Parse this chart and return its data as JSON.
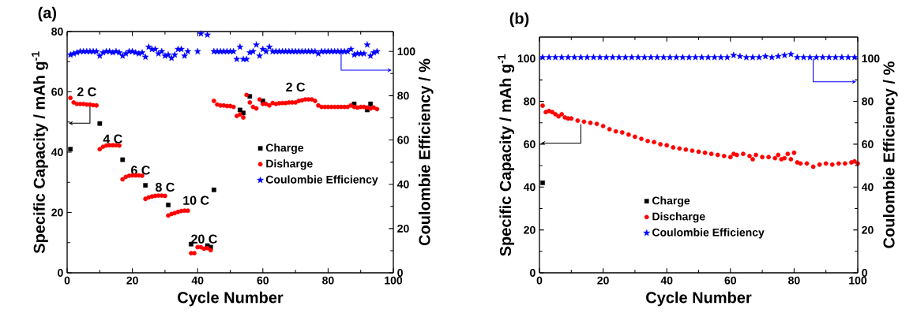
{
  "chart_data": [
    {
      "type": "scatter",
      "title": "(a)",
      "xlabel": "Cycle Number",
      "ylabel": "Specific Capacity / mAh g$^{-1}$",
      "y2label": "Coulombie Efficiency / %",
      "xlim": [
        0,
        100
      ],
      "xticks": [
        0,
        20,
        40,
        60,
        80,
        100
      ],
      "ylim": [
        0,
        80
      ],
      "yticks": [
        0,
        20,
        40,
        60,
        80
      ],
      "y2lim": [
        0,
        109
      ],
      "y2ticks": [
        0,
        20,
        40,
        60,
        80,
        100
      ],
      "grid": false,
      "legend": "right",
      "series": [
        {
          "name": "Charge",
          "color": "#000000",
          "marker": "square",
          "x": [
            1,
            10,
            17,
            24,
            31,
            38,
            43,
            44,
            45,
            53,
            54,
            56,
            60,
            88,
            92,
            93
          ],
          "values": [
            41,
            49.5,
            37.5,
            29,
            22.5,
            9.5,
            9,
            8.5,
            27.5,
            54,
            53,
            58.5,
            57,
            56,
            54,
            56
          ]
        },
        {
          "name": "Disharge",
          "color": "#ff0000",
          "marker": "circle",
          "x": [
            1,
            2,
            3,
            4,
            5,
            6,
            7,
            8,
            9,
            10,
            11,
            12,
            13,
            14,
            15,
            16,
            17,
            18,
            19,
            20,
            21,
            22,
            23,
            24,
            25,
            26,
            27,
            28,
            29,
            30,
            31,
            32,
            33,
            34,
            35,
            36,
            37,
            38,
            39,
            40,
            41,
            42,
            43,
            44,
            45,
            46,
            47,
            48,
            49,
            50,
            51,
            52,
            53,
            54,
            55,
            56,
            57,
            58,
            59,
            60,
            61,
            62,
            63,
            64,
            65,
            66,
            67,
            68,
            69,
            70,
            71,
            72,
            73,
            74,
            75,
            76,
            77,
            78,
            79,
            80,
            81,
            82,
            83,
            84,
            85,
            86,
            87,
            88,
            89,
            90,
            91,
            92,
            93,
            94,
            95
          ],
          "values": [
            58,
            56.5,
            56,
            56,
            56,
            55.8,
            55.8,
            55.6,
            55.5,
            41,
            41.8,
            42.2,
            42.3,
            42.3,
            42.3,
            42.2,
            31,
            31.8,
            32.2,
            32.3,
            32.3,
            32.3,
            32.2,
            24.5,
            25,
            25.3,
            25.5,
            25.6,
            25.6,
            25.5,
            19,
            19.5,
            19.8,
            20.2,
            20.5,
            20.6,
            20.6,
            6.5,
            6.5,
            8.5,
            8.5,
            8,
            8.2,
            7.5,
            57,
            55.8,
            55.5,
            55.5,
            55.3,
            55.3,
            55,
            52,
            52.5,
            51.5,
            59,
            56.5,
            55,
            54.5,
            57.5,
            56,
            56,
            55.5,
            56.3,
            56,
            56.2,
            56.3,
            56.3,
            56.5,
            56.5,
            56.5,
            57,
            57.2,
            57.5,
            57.5,
            57.5,
            57,
            55.5,
            55,
            55,
            55,
            55,
            55,
            55,
            55,
            55,
            55,
            55.5,
            55,
            54.8,
            55,
            55,
            54.8,
            54.5,
            54.8,
            54.3
          ]
        },
        {
          "name": "Coulombie Efficiency",
          "color": "#0000ff",
          "marker": "star",
          "axis": "y2",
          "x": [
            1,
            2,
            3,
            4,
            5,
            6,
            7,
            8,
            9,
            10,
            11,
            12,
            13,
            14,
            15,
            16,
            17,
            18,
            19,
            20,
            21,
            22,
            23,
            24,
            25,
            26,
            27,
            28,
            29,
            30,
            31,
            32,
            33,
            34,
            35,
            36,
            37,
            40,
            41,
            43,
            45,
            46,
            47,
            48,
            49,
            50,
            51,
            52,
            53,
            54,
            55,
            56,
            57,
            58,
            59,
            60,
            61,
            62,
            63,
            64,
            65,
            66,
            67,
            68,
            69,
            70,
            71,
            72,
            73,
            74,
            75,
            76,
            77,
            78,
            79,
            80,
            81,
            82,
            83,
            84,
            85,
            86,
            87,
            88,
            89,
            90,
            91,
            92,
            93,
            94,
            95
          ],
          "values": [
            98.5,
            99,
            99.5,
            100,
            100,
            100,
            100,
            100,
            100,
            98,
            99.5,
            100,
            100,
            99.5,
            100,
            99.5,
            98,
            99,
            100,
            100,
            99.5,
            99,
            99.5,
            97.5,
            102,
            101,
            101,
            99,
            100,
            98,
            98.5,
            97,
            98.5,
            101,
            101,
            98,
            100,
            100,
            108,
            107.5,
            100,
            100,
            100,
            100,
            100,
            100,
            100,
            96.5,
            102,
            96.5,
            96.5,
            99.5,
            100,
            103,
            98,
            101,
            100,
            102,
            100,
            100,
            100,
            100,
            100,
            100,
            100,
            100,
            100,
            100,
            100,
            100,
            100,
            100,
            99,
            100,
            100,
            100,
            100,
            100,
            100,
            100,
            100,
            100,
            101,
            98.5,
            99,
            99,
            99,
            103,
            98,
            99.5,
            100
          ]
        }
      ],
      "annotations": [
        "2 C",
        "4 C",
        "6 C",
        "8 C",
        "10 C",
        "20 C",
        "2 C"
      ]
    },
    {
      "type": "scatter",
      "title": "(b)",
      "xlabel": "Cycle Number",
      "ylabel": "Specific Capacity / mAh g$^{-1}$",
      "y2label": "Coulombie Efficiency / %",
      "xlim": [
        0,
        100
      ],
      "xticks": [
        0,
        20,
        40,
        60,
        80,
        100
      ],
      "ylim": [
        0,
        110
      ],
      "yticks": [
        0,
        20,
        40,
        60,
        80,
        100
      ],
      "y2lim": [
        0,
        110
      ],
      "y2ticks": [
        0,
        20,
        40,
        60,
        80,
        100
      ],
      "grid": false,
      "legend": "bottom",
      "series": [
        {
          "name": "Charge",
          "color": "#000000",
          "marker": "square",
          "x": [
            1
          ],
          "values": [
            42
          ]
        },
        {
          "name": "Discharge",
          "color": "#ff0000",
          "marker": "circle",
          "x": [
            1,
            2,
            3,
            4,
            5,
            6,
            7,
            8,
            9,
            10,
            12,
            14,
            16,
            18,
            20,
            22,
            24,
            26,
            28,
            30,
            32,
            34,
            36,
            38,
            40,
            42,
            44,
            46,
            48,
            50,
            52,
            54,
            56,
            58,
            60,
            61,
            62,
            64,
            66,
            67,
            68,
            70,
            72,
            74,
            75,
            76,
            77,
            78,
            79,
            80,
            81,
            82,
            84,
            86,
            88,
            90,
            92,
            94,
            96,
            98,
            99,
            100
          ],
          "values": [
            78,
            75,
            75.5,
            75,
            74,
            73,
            74,
            72.5,
            72,
            72,
            71,
            70.5,
            70,
            69.5,
            68.5,
            67,
            66,
            65.5,
            64.5,
            63.5,
            62.5,
            61.5,
            61,
            60,
            59.5,
            58.5,
            58,
            57.5,
            57,
            56.5,
            56,
            55.5,
            55,
            54.5,
            54,
            55.5,
            55,
            55.5,
            54.5,
            53,
            55,
            54,
            54,
            53.5,
            55,
            53,
            53.5,
            55.5,
            53,
            56,
            51.5,
            51,
            51,
            49.5,
            50.5,
            51,
            50.5,
            51,
            51,
            51.5,
            52,
            51
          ]
        },
        {
          "name": "Coulombie Efficiency",
          "color": "#0000ff",
          "marker": "star",
          "axis": "y2",
          "x": [
            1,
            3,
            5,
            7,
            9,
            11,
            13,
            15,
            17,
            19,
            21,
            23,
            25,
            27,
            29,
            31,
            33,
            35,
            37,
            39,
            41,
            43,
            45,
            47,
            49,
            51,
            53,
            55,
            57,
            59,
            61,
            63,
            65,
            67,
            69,
            71,
            73,
            75,
            77,
            79,
            81,
            83,
            85,
            87,
            89,
            91,
            93,
            95,
            97,
            99
          ],
          "values": [
            100.5,
            100.5,
            100.5,
            100.5,
            100.5,
            100.5,
            100.5,
            100.5,
            100.5,
            100.5,
            100.5,
            100.5,
            100.5,
            100.5,
            100.5,
            100.5,
            100.5,
            100.5,
            100.5,
            100.5,
            100.5,
            100.5,
            100.5,
            100.5,
            100.5,
            100.5,
            100.5,
            100.5,
            100.5,
            100.5,
            101.5,
            101,
            100.5,
            100.5,
            100.5,
            101,
            100.5,
            101,
            101.5,
            102,
            100.5,
            100.5,
            100.5,
            100.5,
            100.5,
            100.5,
            100.5,
            100.5,
            100.5,
            100.5
          ]
        }
      ]
    }
  ]
}
